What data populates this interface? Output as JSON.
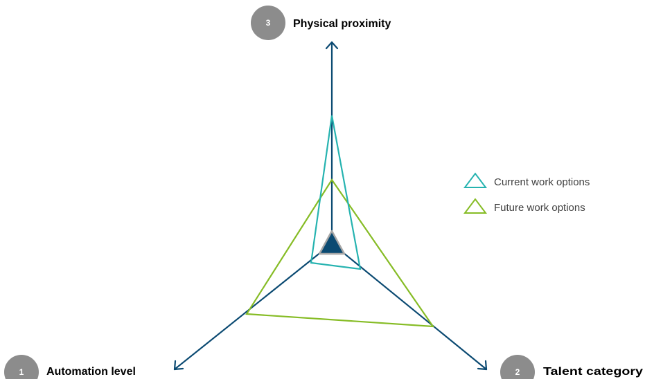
{
  "axes": [
    {
      "number": "1",
      "label": "Automation level"
    },
    {
      "number": "2",
      "label": "Talent category"
    },
    {
      "number": "3",
      "label": "Physical proximity"
    }
  ],
  "legend": {
    "current": "Current work options",
    "future": "Future work options"
  },
  "colors": {
    "axis": "#0b4a72",
    "current": "#26b3b0",
    "future": "#86bc25",
    "badge": "#8c8c8c",
    "center_fill": "#0b4a72",
    "center_stroke": "#a6a6a6"
  }
}
